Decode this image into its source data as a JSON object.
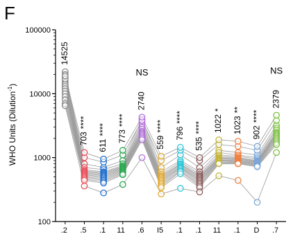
{
  "panel_label": "F",
  "chart_data": {
    "type": "scatter",
    "subtype": "paired-dot (connected lines across categories)",
    "y_scale": "log",
    "ylim": [
      100,
      100000
    ],
    "yticks": [
      "100",
      "1000",
      "10000",
      "100000"
    ],
    "ylabel": "WHO Units (Dilution",
    "ylabel_superscript": "-1",
    "ylabel_close": ")",
    "grid": false,
    "legend": "none",
    "categories": [
      ".2",
      ".5",
      ".1",
      "11",
      ".6",
      "I5",
      ".1",
      ".1",
      "11",
      ".1",
      "D",
      ".7"
    ],
    "category_colors": [
      "#888888",
      "#e8505b",
      "#1f6fd1",
      "#2aa84f",
      "#b06fd8",
      "#e0a82e",
      "#2bc6d8",
      "#8a5a5a",
      "#c5b43a",
      "#f08040",
      "#7aa7d8",
      "#7cc040"
    ],
    "summary_values": [
      14525,
      703,
      611,
      773,
      2740,
      559,
      796,
      535,
      1022,
      1023,
      902,
      2379
    ],
    "significance": [
      "",
      "****",
      "****",
      "****",
      "NS",
      "****",
      "****",
      "****",
      "*",
      "**",
      "****",
      "NS"
    ],
    "series": [
      {
        "values": [
          22000,
          800,
          700,
          900,
          4000,
          700,
          1100,
          700,
          1300,
          1200,
          1100,
          3200
        ]
      },
      {
        "values": [
          20000,
          700,
          650,
          800,
          3600,
          600,
          900,
          600,
          1200,
          1100,
          1000,
          2900
        ]
      },
      {
        "values": [
          18000,
          650,
          600,
          750,
          3300,
          550,
          850,
          550,
          1100,
          1050,
          950,
          2700
        ]
      },
      {
        "values": [
          16500,
          620,
          580,
          720,
          3000,
          520,
          800,
          520,
          1050,
          1000,
          900,
          2500
        ]
      },
      {
        "values": [
          15000,
          600,
          560,
          700,
          2800,
          500,
          780,
          500,
          1000,
          980,
          880,
          2400
        ]
      },
      {
        "values": [
          14000,
          580,
          540,
          680,
          2600,
          480,
          750,
          480,
          980,
          950,
          860,
          2300
        ]
      },
      {
        "values": [
          13000,
          560,
          520,
          660,
          2500,
          460,
          720,
          460,
          950,
          930,
          840,
          2200
        ]
      },
      {
        "values": [
          12000,
          540,
          500,
          640,
          2400,
          440,
          700,
          440,
          920,
          900,
          820,
          2100
        ]
      },
      {
        "values": [
          11000,
          520,
          480,
          620,
          2300,
          420,
          680,
          420,
          900,
          880,
          800,
          2000
        ]
      },
      {
        "values": [
          10000,
          500,
          460,
          600,
          2200,
          400,
          650,
          400,
          880,
          860,
          780,
          1900
        ]
      },
      {
        "values": [
          9000,
          480,
          440,
          580,
          2100,
          380,
          620,
          380,
          850,
          840,
          760,
          1800
        ]
      },
      {
        "values": [
          8000,
          460,
          420,
          560,
          2000,
          360,
          600,
          360,
          820,
          820,
          740,
          1700
        ]
      },
      {
        "values": [
          7000,
          440,
          400,
          540,
          1900,
          340,
          560,
          340,
          800,
          800,
          720,
          1600
        ]
      },
      {
        "values": [
          6500,
          360,
          280,
          380,
          1000,
          270,
          330,
          290,
          520,
          440,
          200,
          1200
        ]
      },
      {
        "values": [
          17000,
          1000,
          850,
          1100,
          3800,
          900,
          1300,
          900,
          1600,
          1500,
          1300,
          3800
        ]
      },
      {
        "values": [
          19000,
          1200,
          950,
          1300,
          4300,
          1050,
          1450,
          1000,
          1900,
          1800,
          1500,
          4600
        ]
      }
    ]
  }
}
